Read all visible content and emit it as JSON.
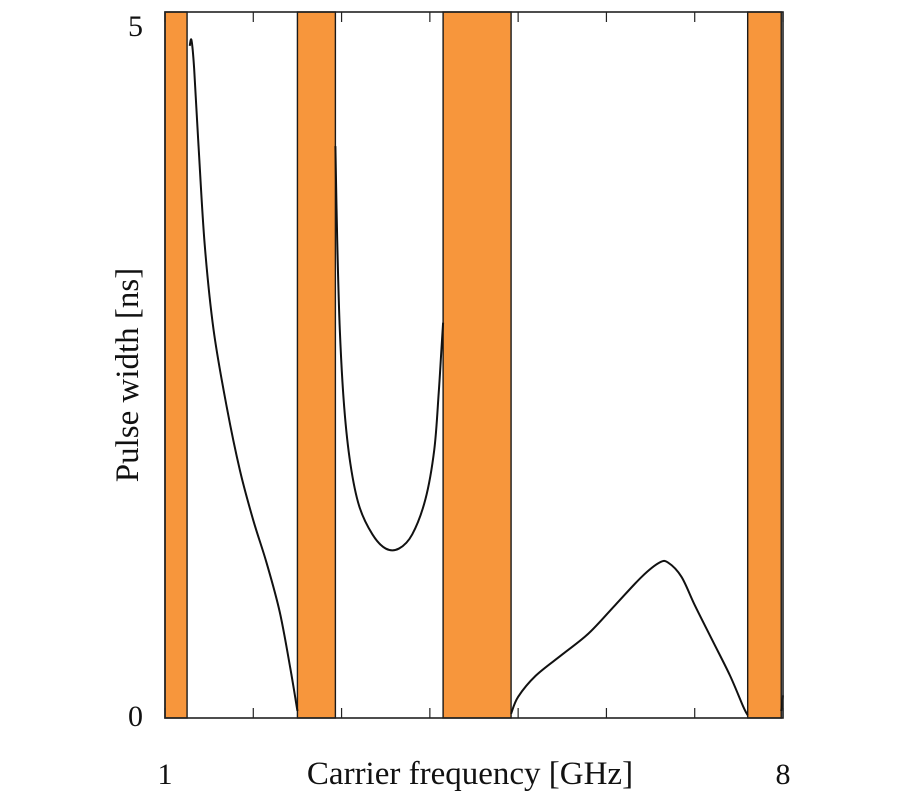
{
  "chart_data": {
    "type": "line",
    "title": "",
    "xlabel": "Carrier frequency [GHz]",
    "ylabel": "Pulse width [ns]",
    "xlim": [
      1,
      8
    ],
    "ylim": [
      0,
      5
    ],
    "x_ticks": [
      1,
      2,
      3,
      4,
      5,
      6,
      7,
      8
    ],
    "x_tick_labels": [
      "1",
      "8"
    ],
    "y_tick_labels": [
      "0",
      "5"
    ],
    "grid": false,
    "band_color": "#f7963c",
    "line_color": "#111111",
    "bands": [
      {
        "x0": 1.0,
        "x1": 1.25
      },
      {
        "x0": 2.5,
        "x1": 2.93
      },
      {
        "x0": 4.15,
        "x1": 4.92
      },
      {
        "x0": 7.6,
        "x1": 7.98
      }
    ],
    "series": [
      {
        "values_x": [
          1.28,
          1.3,
          1.33,
          1.38,
          1.45,
          1.55,
          1.7,
          1.85,
          2.0,
          2.15,
          2.3,
          2.42,
          2.5
        ],
        "values_y": [
          4.76,
          4.8,
          4.6,
          4.05,
          3.35,
          2.75,
          2.2,
          1.75,
          1.4,
          1.1,
          0.75,
          0.35,
          0.05
        ]
      },
      {
        "values_x": [
          2.93,
          2.95,
          2.98,
          3.03,
          3.1,
          3.2,
          3.35,
          3.5,
          3.65,
          3.8,
          3.95,
          4.05,
          4.1,
          4.13,
          4.15
        ],
        "values_y": [
          4.05,
          3.4,
          2.75,
          2.2,
          1.8,
          1.5,
          1.3,
          1.2,
          1.2,
          1.3,
          1.55,
          1.9,
          2.3,
          2.6,
          2.8
        ]
      },
      {
        "values_x": [
          4.92,
          5.0,
          5.2,
          5.5,
          5.8,
          6.1,
          6.4,
          6.6,
          6.7,
          6.85,
          7.0,
          7.2,
          7.4,
          7.55,
          7.6
        ],
        "values_y": [
          0.03,
          0.15,
          0.3,
          0.45,
          0.6,
          0.8,
          1.0,
          1.1,
          1.1,
          1.0,
          0.8,
          0.55,
          0.3,
          0.08,
          0.02
        ]
      },
      {
        "values_x": [
          7.98,
          8.0
        ],
        "values_y": [
          0.05,
          0.16
        ]
      }
    ]
  }
}
